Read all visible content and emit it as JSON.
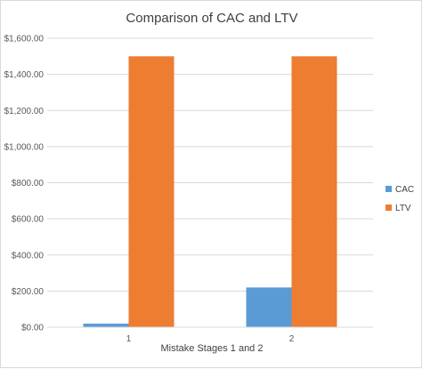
{
  "chart_data": {
    "type": "bar",
    "title": "Comparison  of CAC and LTV",
    "xlabel": "Mistake Stages 1 and 2",
    "ylabel": "",
    "categories": [
      "1",
      "2"
    ],
    "series": [
      {
        "name": "CAC",
        "values": [
          20,
          220
        ],
        "color": "#5b9bd5"
      },
      {
        "name": "LTV",
        "values": [
          1500,
          1500
        ],
        "color": "#ed7d31"
      }
    ],
    "ylim": [
      0,
      1600
    ],
    "yticks": [
      {
        "value": 0,
        "label": "$0.00"
      },
      {
        "value": 200,
        "label": "$200.00"
      },
      {
        "value": 400,
        "label": "$400.00"
      },
      {
        "value": 600,
        "label": "$600.00"
      },
      {
        "value": 800,
        "label": "$800.00"
      },
      {
        "value": 1000,
        "label": "$1,000.00"
      },
      {
        "value": 1200,
        "label": "$1,200.00"
      },
      {
        "value": 1400,
        "label": "$1,400.00"
      },
      {
        "value": 1600,
        "label": "$1,600.00"
      }
    ],
    "grid": true,
    "legend_position": "right"
  }
}
